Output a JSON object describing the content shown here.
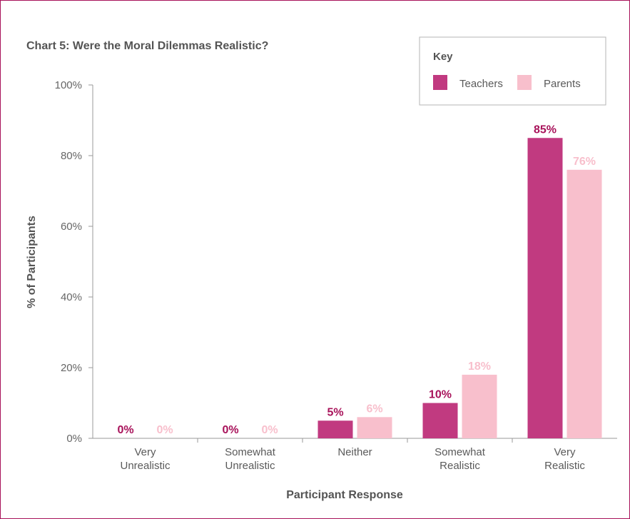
{
  "chart_data": {
    "type": "bar",
    "title": "Chart 5: Were the Moral Dilemmas Realistic?",
    "xlabel": "Participant Response",
    "ylabel": "% of Participants",
    "categories": [
      [
        "Very",
        "Unrealistic"
      ],
      [
        "Somewhat",
        "Unrealistic"
      ],
      [
        "Neither"
      ],
      [
        "Somewhat",
        "Realistic"
      ],
      [
        "Very",
        "Realistic"
      ]
    ],
    "series": [
      {
        "name": "Teachers",
        "color": "#c13a80",
        "label_color": "#a8125a",
        "values": [
          0,
          0,
          5,
          10,
          85
        ],
        "labels": [
          "0%",
          "0%",
          "5%",
          "10%",
          "85%"
        ]
      },
      {
        "name": "Parents",
        "color": "#f8bfcc",
        "label_color": "#f8bfcc",
        "values": [
          0,
          0,
          6,
          18,
          76
        ],
        "labels": [
          "0%",
          "0%",
          "6%",
          "18%",
          "76%"
        ]
      }
    ],
    "ylim": [
      0,
      100
    ],
    "yticks": [
      0,
      20,
      40,
      60,
      80,
      100
    ],
    "ytick_labels": [
      "0%",
      "20%",
      "40%",
      "60%",
      "80%",
      "100%"
    ],
    "grid": false,
    "legend": {
      "title": "Key",
      "placement": "top-right"
    }
  }
}
